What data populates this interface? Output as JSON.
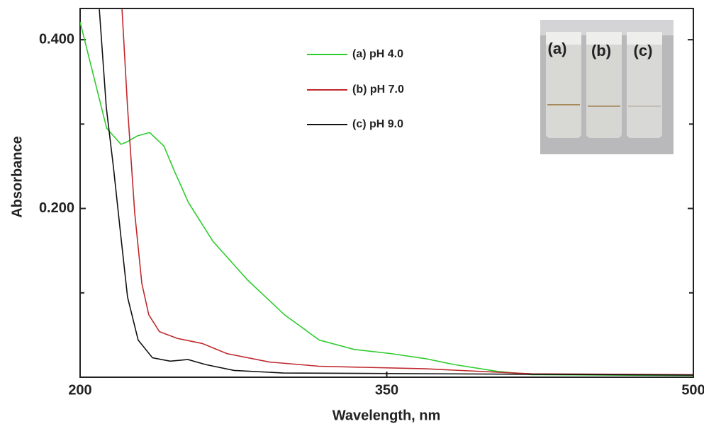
{
  "chart_data": {
    "type": "line",
    "xlabel": "Wavelength, nm",
    "ylabel": "Absorbance",
    "xlim": [
      200,
      500
    ],
    "xticks": [
      200,
      350,
      500
    ],
    "ylim": [
      0,
      0.437
    ],
    "yticks": [
      {
        "value": 0.2,
        "label": "0.200"
      },
      {
        "value": 0.4,
        "label": "0.400"
      }
    ],
    "yminor_ticks": [
      0.1,
      0.3
    ],
    "inset_labels": [
      "(a)",
      "(b)",
      "(c)"
    ],
    "series": [
      {
        "name": "(a) pH 4.0",
        "color": "#2ecc2e",
        "x": [
          200,
          213,
          220,
          223,
          228,
          234,
          241,
          246,
          253,
          265,
          282,
          300,
          317,
          334,
          352,
          369,
          383,
          404,
          421,
          500
        ],
        "values": [
          0.421,
          0.295,
          0.276,
          0.279,
          0.286,
          0.29,
          0.274,
          0.245,
          0.207,
          0.161,
          0.115,
          0.074,
          0.044,
          0.033,
          0.028,
          0.022,
          0.015,
          0.007,
          0.003,
          0.002
        ]
      },
      {
        "name": "(b) pH 7.0",
        "color": "#c0282d",
        "x": [
          220.5,
          223.2,
          226.7,
          230.2,
          233.6,
          238.8,
          247.5,
          259.7,
          271.8,
          292.6,
          316.9,
          368.9,
          420.9,
          500
        ],
        "values": [
          0.436,
          0.32,
          0.195,
          0.111,
          0.074,
          0.054,
          0.046,
          0.04,
          0.028,
          0.018,
          0.013,
          0.01,
          0.004,
          0.003
        ]
      },
      {
        "name": "(c) pH 9.0",
        "color": "#111111",
        "x": [
          209.4,
          212.8,
          216.3,
          219.8,
          223.2,
          228.4,
          235.4,
          244.1,
          252.7,
          261.4,
          275.3,
          299.5,
          500
        ],
        "values": [
          0.436,
          0.32,
          0.249,
          0.17,
          0.095,
          0.044,
          0.023,
          0.019,
          0.021,
          0.015,
          0.008,
          0.005,
          0.0025
        ]
      }
    ]
  }
}
